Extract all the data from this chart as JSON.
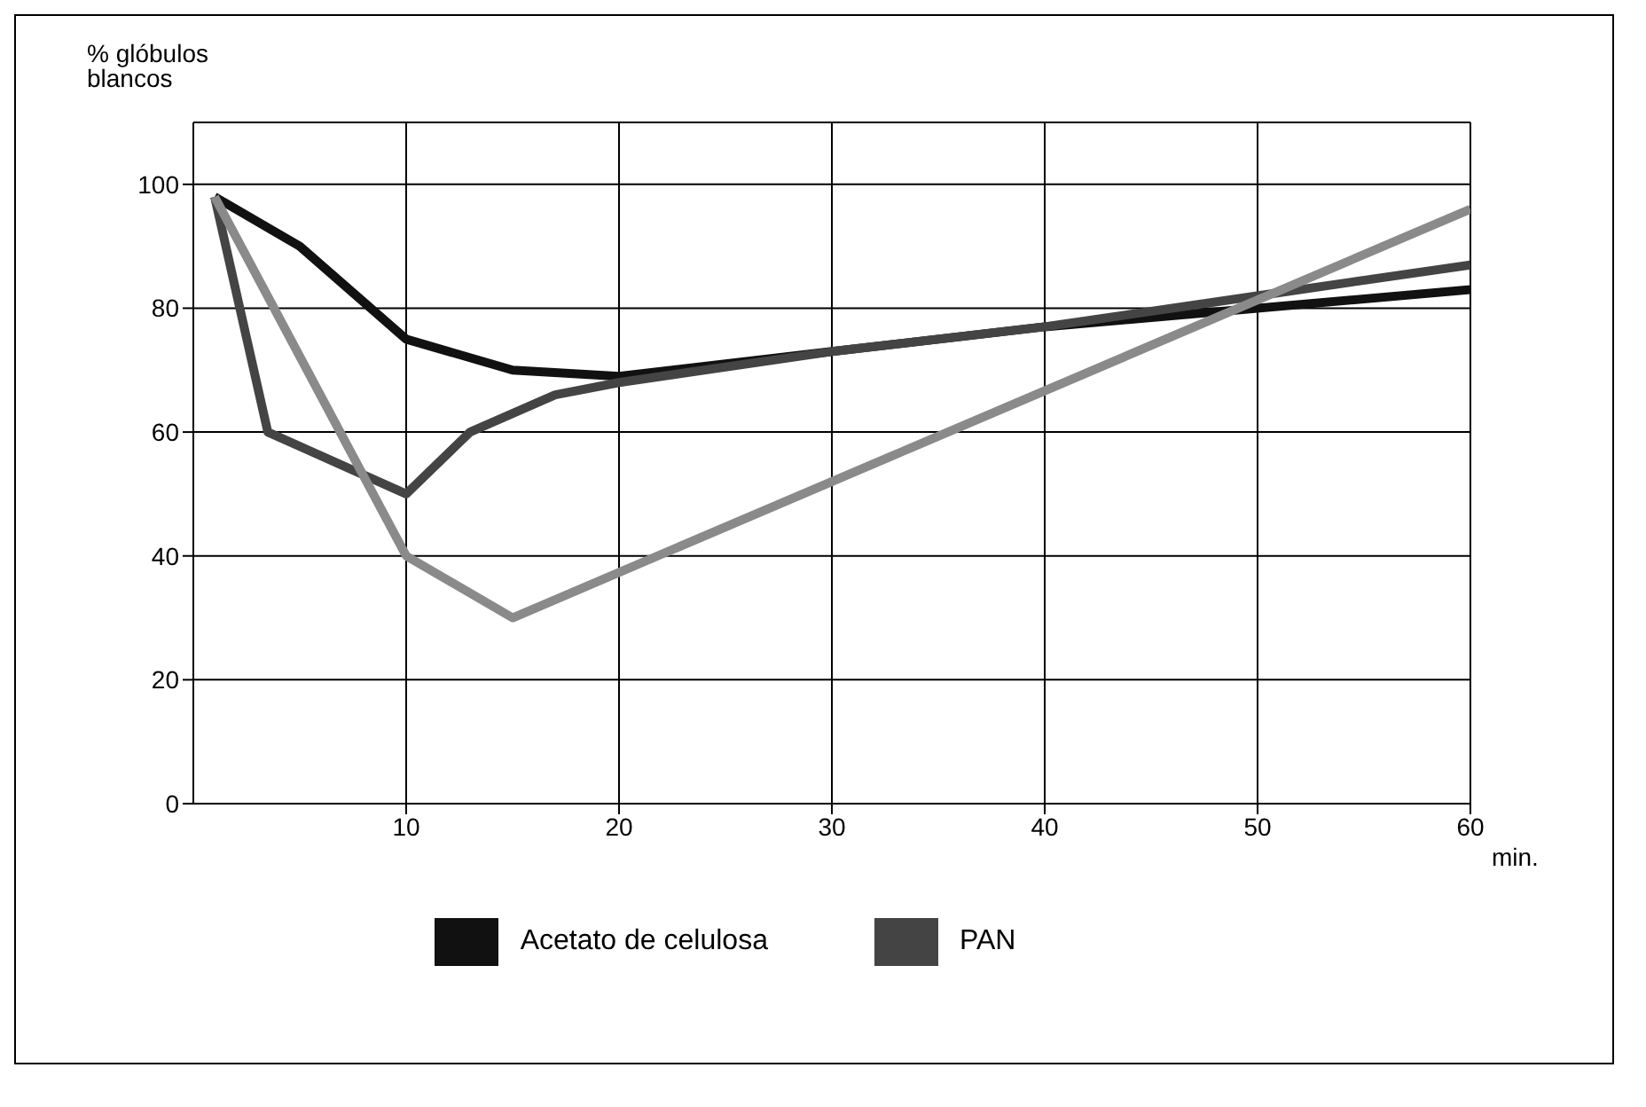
{
  "chart_data": {
    "type": "line",
    "xlabel": "min.",
    "ylabel": "% glóbulos blancos",
    "xlim": [
      0,
      60
    ],
    "ylim": [
      0,
      110
    ],
    "xticks": [
      10,
      20,
      30,
      40,
      50,
      60
    ],
    "yticks": [
      0,
      20,
      40,
      60,
      80,
      100
    ],
    "grid": true,
    "legend": "bottom",
    "marker": "none",
    "line_style": "solid",
    "series": [
      {
        "name": "Acetato de celulosa",
        "color": "#111111",
        "x": [
          1,
          5,
          10,
          15,
          20,
          25,
          30,
          40,
          50,
          60
        ],
        "values": [
          98,
          90,
          75,
          70,
          69,
          71,
          73,
          77,
          80,
          83
        ]
      },
      {
        "name": "PAN",
        "color": "#444444",
        "x": [
          1,
          3.5,
          10,
          13,
          17,
          20,
          30,
          40,
          50,
          60
        ],
        "values": [
          98,
          60,
          50,
          60,
          66,
          68,
          73,
          77,
          82,
          87
        ]
      },
      {
        "color": "#8a8a8a",
        "x": [
          1,
          10,
          15,
          60
        ],
        "values": [
          98,
          40,
          30,
          96
        ]
      }
    ]
  }
}
